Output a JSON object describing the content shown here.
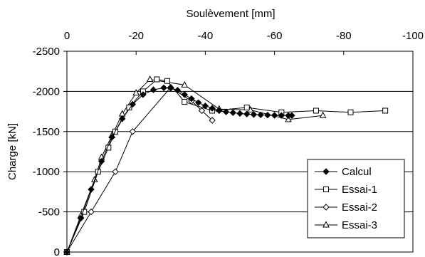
{
  "chart_data": {
    "type": "line",
    "title": "",
    "xlabel": "Soulèvement [mm]",
    "ylabel": "Charge [kN]",
    "x_axis_position": "top",
    "xlim": [
      0,
      -100
    ],
    "ylim": [
      0,
      -2500
    ],
    "x_ticks": [
      0,
      -20,
      -40,
      -60,
      -80,
      -100
    ],
    "y_ticks": [
      0,
      -500,
      -1000,
      -1500,
      -2000,
      -2500
    ],
    "x_tick_labels": [
      "0",
      "-20",
      "-40",
      "-60",
      "-80",
      "-100"
    ],
    "y_tick_labels": [
      "0",
      "-500",
      "-1000",
      "-1500",
      "-2000",
      "-2500"
    ],
    "grid": "horizontal",
    "legend_position": "bottom-right",
    "series": [
      {
        "name": "Calcul",
        "marker": "diamond-filled",
        "points": [
          [
            0,
            0
          ],
          [
            -4,
            -420
          ],
          [
            -7,
            -780
          ],
          [
            -10,
            -1130
          ],
          [
            -13,
            -1430
          ],
          [
            -16,
            -1660
          ],
          [
            -19,
            -1840
          ],
          [
            -22,
            -1960
          ],
          [
            -25,
            -2020
          ],
          [
            -28,
            -2045
          ],
          [
            -30,
            -2040
          ],
          [
            -32,
            -2015
          ],
          [
            -34,
            -1960
          ],
          [
            -36,
            -1910
          ],
          [
            -38,
            -1860
          ],
          [
            -40,
            -1820
          ],
          [
            -42,
            -1790
          ],
          [
            -44,
            -1760
          ],
          [
            -46,
            -1745
          ],
          [
            -48,
            -1735
          ],
          [
            -50,
            -1725
          ],
          [
            -52,
            -1718
          ],
          [
            -54,
            -1712
          ],
          [
            -56,
            -1708
          ],
          [
            -58,
            -1705
          ],
          [
            -60,
            -1702
          ],
          [
            -62,
            -1700
          ],
          [
            -64,
            -1700
          ],
          [
            -65,
            -1700
          ]
        ]
      },
      {
        "name": "Essai-1",
        "marker": "square-open",
        "points": [
          [
            0,
            0
          ],
          [
            -5,
            -500
          ],
          [
            -9,
            -1000
          ],
          [
            -12,
            -1300
          ],
          [
            -14,
            -1500
          ],
          [
            -18,
            -1800
          ],
          [
            -22,
            -2000
          ],
          [
            -26,
            -2150
          ],
          [
            -29,
            -2130
          ],
          [
            -34,
            -1870
          ],
          [
            -42,
            -1760
          ],
          [
            -52,
            -1800
          ],
          [
            -62,
            -1740
          ],
          [
            -72,
            -1760
          ],
          [
            -82,
            -1740
          ],
          [
            -92,
            -1760
          ]
        ]
      },
      {
        "name": "Essai-2",
        "marker": "diamond-open",
        "points": [
          [
            0,
            0
          ],
          [
            -7,
            -500
          ],
          [
            -14,
            -1000
          ],
          [
            -19,
            -1500
          ],
          [
            -30,
            -2050
          ],
          [
            -36,
            -1880
          ],
          [
            -39,
            -1760
          ],
          [
            -42,
            -1640
          ]
        ]
      },
      {
        "name": "Essai-3",
        "marker": "triangle-open",
        "points": [
          [
            0,
            0
          ],
          [
            -4,
            -450
          ],
          [
            -8,
            -900
          ],
          [
            -10,
            -1180
          ],
          [
            -13,
            -1450
          ],
          [
            -16,
            -1720
          ],
          [
            -20,
            -1980
          ],
          [
            -24,
            -2150
          ],
          [
            -34,
            -2080
          ],
          [
            -44,
            -1780
          ],
          [
            -53,
            -1770
          ],
          [
            -64,
            -1650
          ],
          [
            -74,
            -1700
          ]
        ]
      }
    ]
  }
}
